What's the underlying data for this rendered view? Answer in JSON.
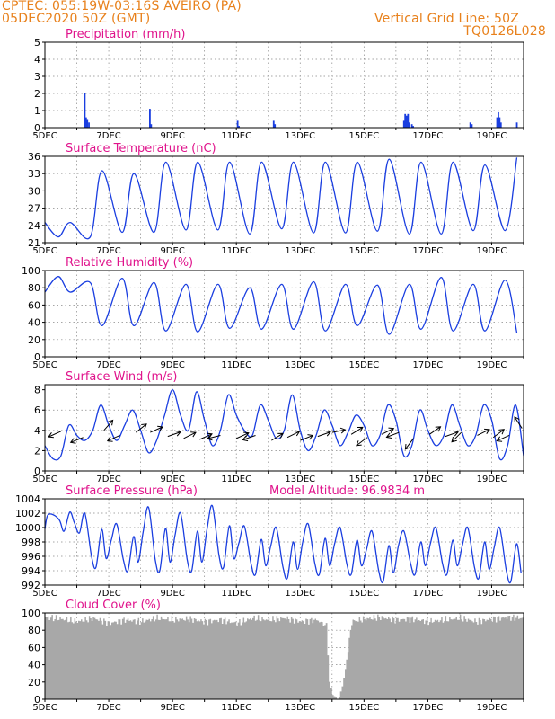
{
  "header": {
    "line1": "CPTEC:   055:19W-03:16S   AVEIRO (PA)",
    "line2": "05DEC2020 50Z (GMT)",
    "grid_label": "Vertical Grid Line: 50Z",
    "model_code": "TQ0126L028"
  },
  "colors": {
    "header": "#e8811c",
    "panel_title": "#e0148c",
    "series": "#1a3ee0",
    "cloud": "#a8a8a8",
    "grid": "#888888"
  },
  "x_tick_labels": [
    "5DEC",
    "7DEC",
    "9DEC",
    "11DEC",
    "13DEC",
    "15DEC",
    "17DEC",
    "19DEC"
  ],
  "chart_data": [
    {
      "id": "precip",
      "type": "bar",
      "title": "Precipitation (mm/h)",
      "ylim": [
        0,
        5
      ],
      "yticks": [
        0,
        1,
        2,
        3,
        4,
        5
      ],
      "x_unit": "days since 5DEC 00Z",
      "xlim": [
        0,
        15
      ],
      "bars": [
        [
          1.25,
          2.0
        ],
        [
          1.29,
          0.6
        ],
        [
          1.33,
          0.5
        ],
        [
          1.38,
          0.3
        ],
        [
          3.29,
          1.1
        ],
        [
          3.33,
          0.2
        ],
        [
          6.04,
          0.4
        ],
        [
          6.08,
          0.1
        ],
        [
          7.17,
          0.4
        ],
        [
          7.21,
          0.2
        ],
        [
          11.25,
          0.4
        ],
        [
          11.29,
          0.8
        ],
        [
          11.33,
          0.7
        ],
        [
          11.38,
          0.8
        ],
        [
          11.42,
          0.3
        ],
        [
          11.5,
          0.2
        ],
        [
          11.54,
          0.1
        ],
        [
          13.33,
          0.3
        ],
        [
          13.38,
          0.2
        ],
        [
          14.17,
          0.6
        ],
        [
          14.21,
          0.9
        ],
        [
          14.25,
          0.6
        ],
        [
          14.29,
          0.3
        ],
        [
          14.79,
          0.3
        ]
      ]
    },
    {
      "id": "temp",
      "type": "line",
      "title": "Surface Temperature (nC)",
      "ylim": [
        21,
        36
      ],
      "yticks": [
        21,
        24,
        27,
        30,
        33,
        36
      ],
      "xlim": [
        0,
        15
      ],
      "daily_min": [
        22.0,
        22.0,
        22.8,
        22.8,
        23.2,
        23.2,
        22.5,
        23.4,
        22.7,
        22.7,
        23.0,
        22.5,
        22.5,
        23.1,
        23.1,
        23.1
      ],
      "daily_max": [
        24.5,
        33.5,
        33.0,
        35.0,
        35.0,
        35.0,
        35.0,
        35.0,
        35.0,
        35.0,
        35.5,
        35.0,
        35.0,
        34.5,
        35.8,
        33.0
      ]
    },
    {
      "id": "rh",
      "type": "line",
      "title": "Relative Humidity (%)",
      "ylim": [
        0,
        100
      ],
      "yticks": [
        0,
        20,
        40,
        60,
        80,
        100
      ],
      "xlim": [
        0,
        15
      ],
      "daily_min": [
        75,
        36,
        36,
        30,
        29,
        33,
        32,
        32,
        30,
        36,
        26,
        32,
        30,
        30,
        28,
        43
      ],
      "daily_max": [
        93,
        86,
        91,
        86,
        84,
        84,
        80,
        84,
        87,
        84,
        83,
        84,
        92,
        84,
        89,
        74
      ]
    },
    {
      "id": "wind",
      "type": "line",
      "title": "Surface Wind (m/s)",
      "ylim": [
        0,
        8.5
      ],
      "yticks": [
        0,
        2,
        4,
        6,
        8
      ],
      "xlim": [
        0,
        15
      ],
      "speed": [
        [
          0.0,
          2.5
        ],
        [
          0.25,
          1.2
        ],
        [
          0.5,
          1.5
        ],
        [
          0.75,
          4.5
        ],
        [
          1.0,
          3.5
        ],
        [
          1.25,
          3.0
        ],
        [
          1.5,
          4.0
        ],
        [
          1.75,
          6.5
        ],
        [
          2.0,
          4.5
        ],
        [
          2.25,
          3.0
        ],
        [
          2.5,
          4.5
        ],
        [
          2.75,
          6.0
        ],
        [
          3.0,
          4.0
        ],
        [
          3.25,
          1.8
        ],
        [
          3.5,
          3.0
        ],
        [
          3.75,
          5.5
        ],
        [
          4.0,
          8.0
        ],
        [
          4.25,
          5.5
        ],
        [
          4.5,
          4.0
        ],
        [
          4.75,
          7.8
        ],
        [
          5.0,
          5.0
        ],
        [
          5.25,
          2.5
        ],
        [
          5.5,
          4.0
        ],
        [
          5.75,
          7.5
        ],
        [
          6.0,
          5.5
        ],
        [
          6.25,
          4.0
        ],
        [
          6.5,
          3.5
        ],
        [
          6.75,
          6.5
        ],
        [
          7.0,
          5.0
        ],
        [
          7.25,
          3.2
        ],
        [
          7.5,
          4.0
        ],
        [
          7.75,
          7.5
        ],
        [
          8.0,
          4.0
        ],
        [
          8.25,
          2.0
        ],
        [
          8.5,
          3.5
        ],
        [
          8.75,
          6.0
        ],
        [
          9.0,
          4.5
        ],
        [
          9.25,
          2.5
        ],
        [
          9.5,
          3.8
        ],
        [
          9.75,
          5.5
        ],
        [
          10.0,
          4.5
        ],
        [
          10.25,
          2.5
        ],
        [
          10.5,
          3.5
        ],
        [
          10.75,
          6.5
        ],
        [
          11.0,
          5.0
        ],
        [
          11.25,
          1.5
        ],
        [
          11.5,
          2.5
        ],
        [
          11.75,
          6.0
        ],
        [
          12.0,
          4.0
        ],
        [
          12.25,
          2.5
        ],
        [
          12.5,
          3.5
        ],
        [
          12.75,
          6.5
        ],
        [
          13.0,
          4.5
        ],
        [
          13.25,
          2.5
        ],
        [
          13.5,
          3.5
        ],
        [
          13.75,
          6.5
        ],
        [
          14.0,
          5.0
        ],
        [
          14.25,
          1.2
        ],
        [
          14.5,
          2.5
        ],
        [
          14.75,
          6.5
        ],
        [
          15.0,
          1.5
        ]
      ],
      "arrows": [
        [
          0.5,
          3.9,
          -1,
          -0.45
        ],
        [
          1.2,
          3.3,
          -1,
          -0.4
        ],
        [
          1.85,
          4.0,
          0.7,
          0.8
        ],
        [
          2.35,
          3.5,
          -0.9,
          -0.4
        ],
        [
          2.85,
          3.8,
          0.7,
          0.55
        ],
        [
          3.3,
          3.8,
          0.9,
          0.4
        ],
        [
          3.85,
          3.4,
          1,
          0.35
        ],
        [
          4.35,
          3.2,
          1,
          0.5
        ],
        [
          4.85,
          3.1,
          1,
          0.45
        ],
        [
          5.5,
          3.5,
          -1,
          -0.25
        ],
        [
          6.0,
          3.2,
          1,
          0.45
        ],
        [
          6.6,
          3.5,
          -1,
          -0.35
        ],
        [
          7.1,
          3.0,
          0.9,
          0.55
        ],
        [
          7.6,
          3.3,
          1,
          0.5
        ],
        [
          8.0,
          3.0,
          1,
          0.4
        ],
        [
          8.55,
          3.4,
          1,
          0.35
        ],
        [
          9.0,
          3.8,
          1,
          0.2
        ],
        [
          9.6,
          3.6,
          0.8,
          0.5
        ],
        [
          10.1,
          3.3,
          -0.8,
          -0.6
        ],
        [
          10.55,
          3.6,
          0.9,
          0.45
        ],
        [
          11.1,
          3.8,
          -0.9,
          -0.35
        ],
        [
          11.55,
          3.2,
          -0.6,
          -0.8
        ],
        [
          12.05,
          3.6,
          0.8,
          0.55
        ],
        [
          12.55,
          3.4,
          1,
          0.35
        ],
        [
          13.05,
          3.8,
          -0.7,
          -0.7
        ],
        [
          13.55,
          3.5,
          0.9,
          0.45
        ],
        [
          14.05,
          3.3,
          0.8,
          0.6
        ],
        [
          14.55,
          3.5,
          -0.9,
          -0.4
        ],
        [
          14.95,
          4.2,
          -0.55,
          0.85
        ]
      ]
    },
    {
      "id": "pressure",
      "type": "line",
      "title": "Surface Pressure (hPa)",
      "annotation": "Model Altitude: 96.9834 m",
      "ylim": [
        992,
        1004
      ],
      "yticks": [
        992,
        994,
        996,
        998,
        1000,
        1002,
        1004
      ],
      "xlim": [
        0,
        15
      ],
      "daily_high": [
        1001.8,
        1002.0,
        1000.5,
        1002.8,
        1002.0,
        1003.0,
        1000.2,
        1000.0,
        1000.5,
        1000.0,
        999.5,
        999.5,
        1000.0,
        1000.0,
        1000.0,
        998.0
      ],
      "daily_low": [
        999.5,
        994.5,
        994.0,
        994.0,
        994.0,
        994.5,
        993.5,
        993.0,
        993.5,
        993.5,
        992.5,
        993.5,
        993.5,
        993.0,
        992.5,
        993.5
      ]
    },
    {
      "id": "cloud",
      "type": "area",
      "title": "Cloud Cover (%)",
      "ylim": [
        0,
        100
      ],
      "yticks": [
        0,
        20,
        40,
        60,
        80,
        100
      ],
      "xlim": [
        0,
        15
      ],
      "cover": [
        [
          0.0,
          95
        ],
        [
          0.5,
          93
        ],
        [
          1.0,
          90
        ],
        [
          1.5,
          94
        ],
        [
          2.0,
          88
        ],
        [
          2.5,
          92
        ],
        [
          3.0,
          90
        ],
        [
          3.5,
          94
        ],
        [
          4.0,
          92
        ],
        [
          4.5,
          93
        ],
        [
          5.0,
          90
        ],
        [
          5.5,
          92
        ],
        [
          6.0,
          88
        ],
        [
          6.5,
          94
        ],
        [
          7.0,
          92
        ],
        [
          7.5,
          94
        ],
        [
          8.0,
          90
        ],
        [
          8.5,
          92
        ],
        [
          8.8,
          85
        ],
        [
          8.9,
          20
        ],
        [
          9.0,
          5
        ],
        [
          9.1,
          2
        ],
        [
          9.15,
          0
        ],
        [
          9.2,
          3
        ],
        [
          9.3,
          15
        ],
        [
          9.4,
          35
        ],
        [
          9.6,
          90
        ],
        [
          10.0,
          93
        ],
        [
          10.5,
          95
        ],
        [
          11.0,
          92
        ],
        [
          11.5,
          93
        ],
        [
          12.0,
          90
        ],
        [
          12.5,
          92
        ],
        [
          13.0,
          94
        ],
        [
          13.5,
          90
        ],
        [
          14.0,
          93
        ],
        [
          14.5,
          95
        ],
        [
          15.0,
          94
        ]
      ]
    }
  ]
}
